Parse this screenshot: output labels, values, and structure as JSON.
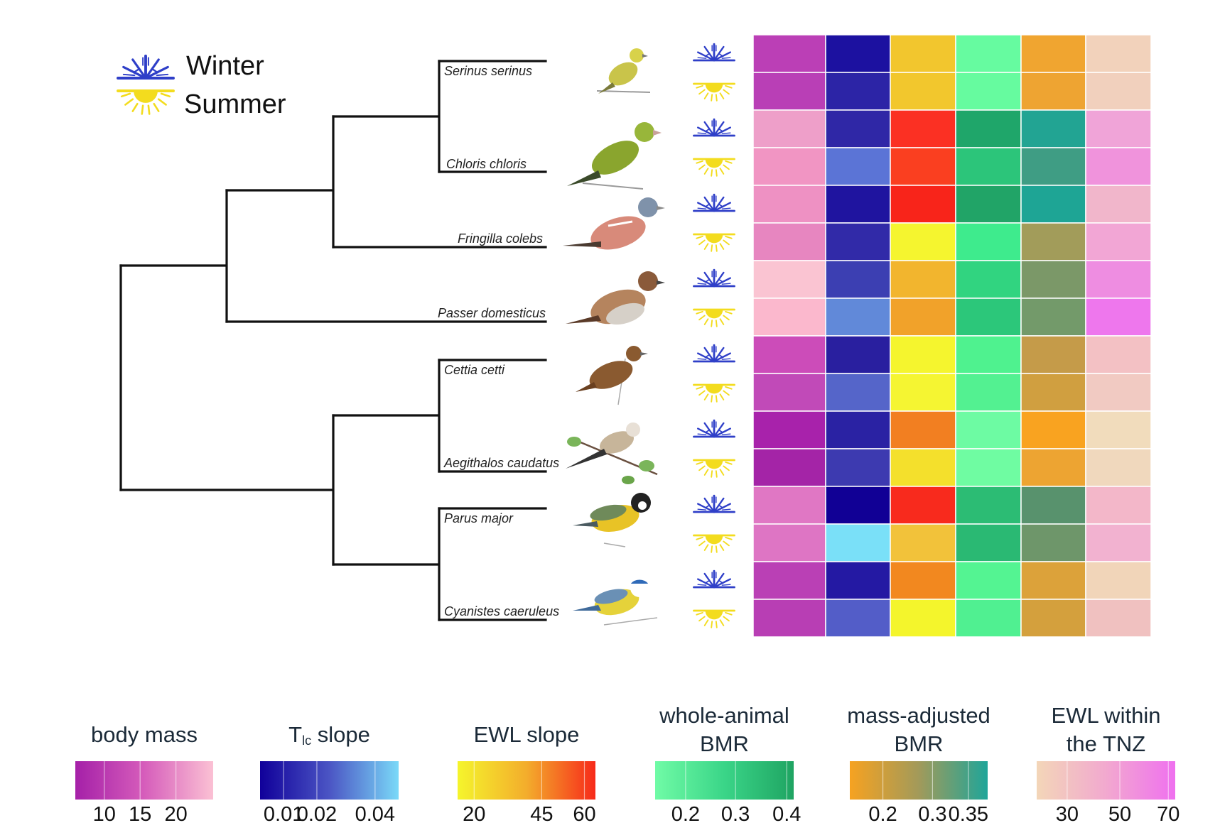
{
  "legend": {
    "winter_label": "Winter",
    "summer_label": "Summer",
    "winter_icon": "snowflake-icon",
    "summer_icon": "sun-icon",
    "winter_color": "#2f3fc8",
    "summer_color": "#f3dc1e"
  },
  "tree": {
    "species": [
      "Serinus serinus",
      "Chloris chloris",
      "Fringilla colebs",
      "Passer domesticus",
      "Cettia cetti",
      "Aegithalos caudatus",
      "Parus major",
      "Cyanistes caeruleus"
    ],
    "topology": "(((((Serinus serinus,Chloris chloris),Fringilla colebs),Passer domesticus),((Cettia cetti,Aegithalos caudatus),(Parus major,Cyanistes caeruleus))))"
  },
  "heatmap": {
    "row_order": [
      "winter",
      "summer"
    ],
    "cells": [
      [
        "#bb3fb6",
        "#1c11a0",
        "#f2c62e",
        "#66fba0",
        "#f0a530",
        "#f2d2bb"
      ],
      [
        "#b93fb6",
        "#2c24a6",
        "#f2c72d",
        "#66fb9f",
        "#eea432",
        "#f1d0bd"
      ],
      [
        "#ee9fc9",
        "#2f27a6",
        "#fb3023",
        "#1fa66a",
        "#22a493",
        "#f0a4d8"
      ],
      [
        "#f195c3",
        "#5b74d6",
        "#fa3f20",
        "#2cc57a",
        "#3f9d84",
        "#f093dc"
      ],
      [
        "#ee91c3",
        "#1f149f",
        "#f8241a",
        "#21a467",
        "#1ea595",
        "#f1b6cb"
      ],
      [
        "#e786c0",
        "#312aa8",
        "#f5f52f",
        "#3eeb8d",
        "#a29c5a",
        "#f2a6d5"
      ],
      [
        "#fac4d2",
        "#3c3fb2",
        "#f2b52e",
        "#31d480",
        "#7b9868",
        "#ee8de1"
      ],
      [
        "#fbb8cd",
        "#6189d9",
        "#f1a22a",
        "#2cc77a",
        "#739a6a",
        "#ee77ed"
      ],
      [
        "#cc4cb9",
        "#291f9f",
        "#f5f52e",
        "#4ff28f",
        "#c59b49",
        "#f3c1c4"
      ],
      [
        "#c14ab8",
        "#5565c9",
        "#f5f532",
        "#53f191",
        "#d09f40",
        "#f1cac2"
      ],
      [
        "#a822ab",
        "#2a22a3",
        "#f27f21",
        "#6dfba3",
        "#f9a320",
        "#f1dcbc"
      ],
      [
        "#a424a7",
        "#3d3ab0",
        "#f4e02c",
        "#6ffca2",
        "#eda432",
        "#f0d8bd"
      ],
      [
        "#e077c4",
        "#110095",
        "#f82a1d",
        "#2cbc74",
        "#58926d",
        "#f3b7c9"
      ],
      [
        "#de75c4",
        "#7ae0f8",
        "#f2c23a",
        "#2ab973",
        "#6e966a",
        "#f2b2d0"
      ],
      [
        "#ba40b5",
        "#2419a3",
        "#f2881f",
        "#54f492",
        "#dca23a",
        "#f1d5b9"
      ],
      [
        "#b83eb4",
        "#535dc8",
        "#f4f52c",
        "#50f091",
        "#d4a03d",
        "#f0c1c0"
      ]
    ]
  },
  "scales": [
    {
      "title_lines": [
        "body mass"
      ],
      "gradient": [
        "#a520a8",
        "#d65dbb",
        "#fbc1d4"
      ],
      "ticks": [
        "10",
        "15",
        "20"
      ]
    },
    {
      "title_main": "T",
      "title_sub": "lc",
      "title_rest": "slope",
      "gradient": [
        "#10009a",
        "#4b55c4",
        "#7ad9f8"
      ],
      "ticks": [
        "0.01",
        "0.02",
        "0.04"
      ]
    },
    {
      "title_lines": [
        "EWL slope"
      ],
      "gradient": [
        "#f5f52c",
        "#f3ad2c",
        "#f72a1a"
      ],
      "ticks": [
        "20",
        "45",
        "60"
      ]
    },
    {
      "title_lines": [
        "whole-animal",
        "BMR"
      ],
      "gradient": [
        "#70fba6",
        "#3ad588",
        "#1fa462"
      ],
      "ticks": [
        "0.2",
        "0.3",
        "0.4"
      ]
    },
    {
      "title_lines": [
        "mass-adjusted",
        "BMR"
      ],
      "gradient": [
        "#f6a221",
        "#a29a5a",
        "#1fa599"
      ],
      "ticks": [
        "0.2",
        "0.3",
        "0.35"
      ]
    },
    {
      "title_lines": [
        "EWL within",
        "the TNZ"
      ],
      "gradient": [
        "#f3d6b8",
        "#f2a9cf",
        "#ef70ef"
      ],
      "ticks": [
        "30",
        "50",
        "70"
      ]
    }
  ]
}
